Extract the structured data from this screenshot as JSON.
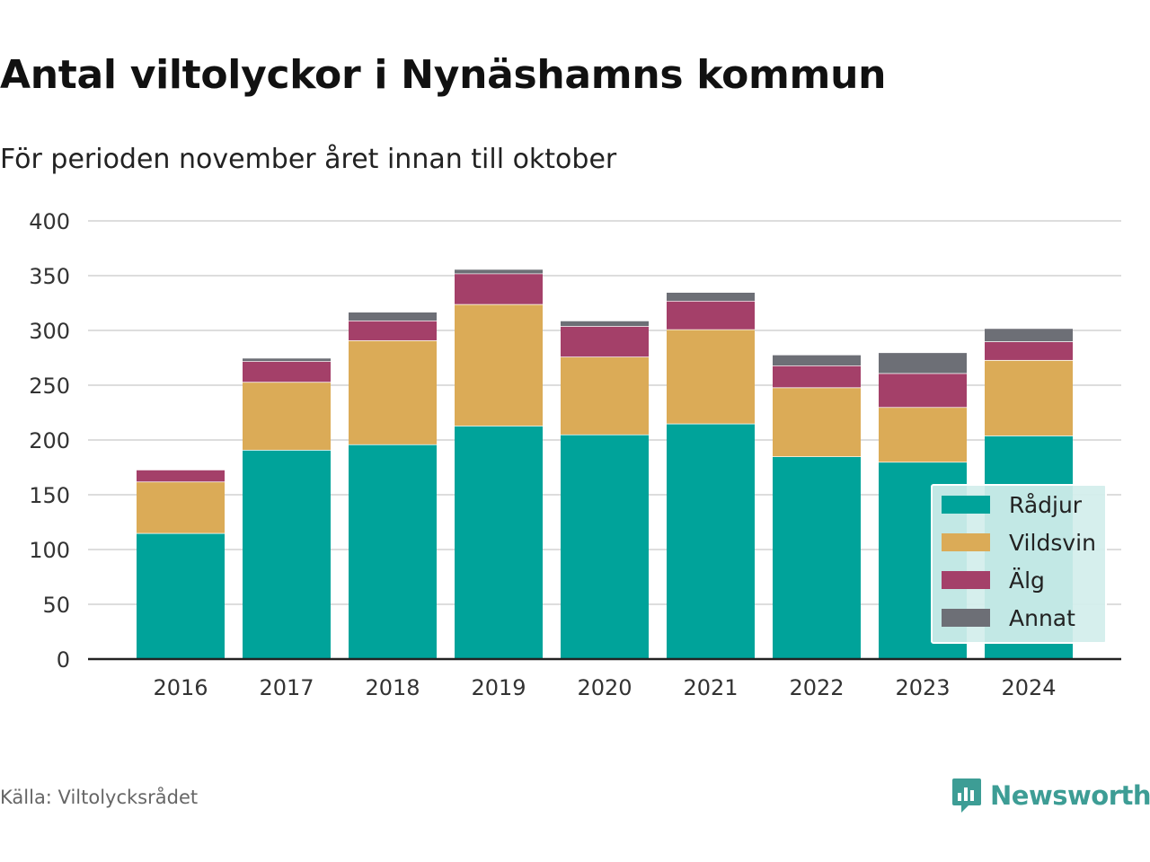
{
  "header": {
    "title": "Antal viltolyckor i Nynäshamns kommun",
    "subtitle": "För perioden november året innan till oktober"
  },
  "footer": {
    "source": "Källa: Viltolycksrådet",
    "brand": "Newsworthy"
  },
  "chart_data": {
    "type": "bar",
    "stacked": true,
    "categories": [
      "2016",
      "2017",
      "2018",
      "2019",
      "2020",
      "2021",
      "2022",
      "2023",
      "2024"
    ],
    "series": [
      {
        "name": "Rådjur",
        "color": "#00a39a",
        "values": [
          115,
          191,
          196,
          213,
          205,
          215,
          185,
          180,
          204
        ]
      },
      {
        "name": "Vildsvin",
        "color": "#dbab57",
        "values": [
          47,
          62,
          95,
          111,
          71,
          86,
          63,
          50,
          69
        ]
      },
      {
        "name": "Älg",
        "color": "#a44069",
        "values": [
          11,
          19,
          18,
          28,
          28,
          26,
          20,
          31,
          17
        ]
      },
      {
        "name": "Annat",
        "color": "#6d6f76",
        "values": [
          0,
          3,
          8,
          4,
          5,
          8,
          10,
          19,
          12
        ]
      }
    ],
    "ylim": [
      0,
      400
    ],
    "yticks": [
      0,
      50,
      100,
      150,
      200,
      250,
      300,
      350,
      400
    ],
    "grid": true,
    "legend": "bottom-right"
  }
}
